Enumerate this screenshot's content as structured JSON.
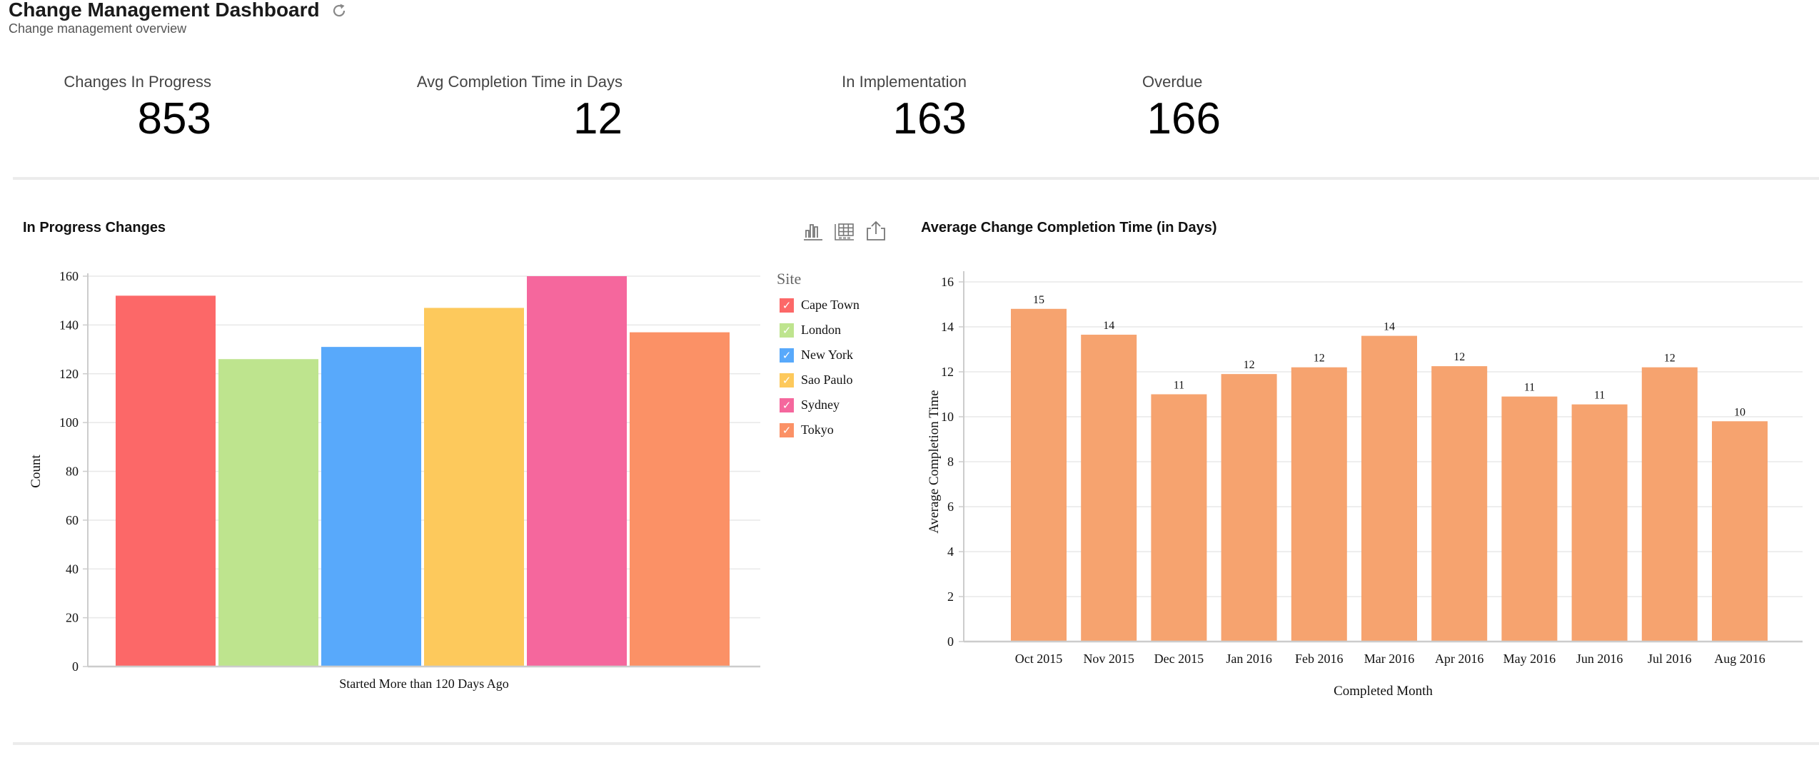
{
  "header": {
    "title": "Change Management Dashboard",
    "subtitle": "Change management overview",
    "refresh_icon": "refresh-icon"
  },
  "kpis": [
    {
      "label": "Changes In Progress",
      "value": "853"
    },
    {
      "label": "Avg Completion Time in Days",
      "value": "12"
    },
    {
      "label": "In Implementation",
      "value": "163"
    },
    {
      "label": "Overdue",
      "value": "166"
    }
  ],
  "left_panel": {
    "title": "In Progress Changes",
    "toolbar_icons": [
      "bar-chart-icon",
      "table-icon",
      "export-icon"
    ],
    "legend_title": "Site",
    "legend_check": "✓"
  },
  "right_panel": {
    "title": "Average Change Completion Time (in Days)"
  },
  "colors": {
    "Cape Town": "#fc6868",
    "London": "#bee48e",
    "New York": "#58a9fb",
    "Sao Paulo": "#fdc95c",
    "Sydney": "#f5679d",
    "Tokyo": "#fb9166",
    "avg_bar": "#f6a36f",
    "grid": "#e8e8e8",
    "axis": "#cccccc"
  },
  "chart_data": [
    {
      "type": "bar",
      "title": "In Progress Changes",
      "categories": [
        "Started More than 120 Days Ago"
      ],
      "series": [
        {
          "name": "Cape Town",
          "values": [
            152
          ]
        },
        {
          "name": "London",
          "values": [
            126
          ]
        },
        {
          "name": "New York",
          "values": [
            131
          ]
        },
        {
          "name": "Sao Paulo",
          "values": [
            147
          ]
        },
        {
          "name": "Sydney",
          "values": [
            160
          ]
        },
        {
          "name": "Tokyo",
          "values": [
            137
          ]
        }
      ],
      "xlabel": "Started More than 120 Days Ago",
      "ylabel": "Count",
      "ylim": [
        0,
        160
      ],
      "yticks": [
        0,
        20,
        40,
        60,
        80,
        100,
        120,
        140,
        160
      ],
      "grid": true,
      "legend": "right",
      "legend_title": "Site"
    },
    {
      "type": "bar",
      "title": "Average Change Completion Time (in Days)",
      "categories": [
        "Oct 2015",
        "Nov 2015",
        "Dec 2015",
        "Jan 2016",
        "Feb 2016",
        "Mar 2016",
        "Apr 2016",
        "May 2016",
        "Jun 2016",
        "Jul 2016",
        "Aug 2016"
      ],
      "values": [
        14.8,
        13.65,
        11.0,
        11.9,
        12.2,
        13.6,
        12.25,
        10.9,
        10.55,
        12.2,
        9.8
      ],
      "data_labels": [
        "15",
        "14",
        "11",
        "12",
        "12",
        "14",
        "12",
        "11",
        "11",
        "12",
        "10"
      ],
      "xlabel": "Completed Month",
      "ylabel": "Average Completion Time",
      "ylim": [
        0,
        16
      ],
      "yticks": [
        0,
        2,
        4,
        6,
        8,
        10,
        12,
        14,
        16
      ],
      "grid": true
    }
  ]
}
